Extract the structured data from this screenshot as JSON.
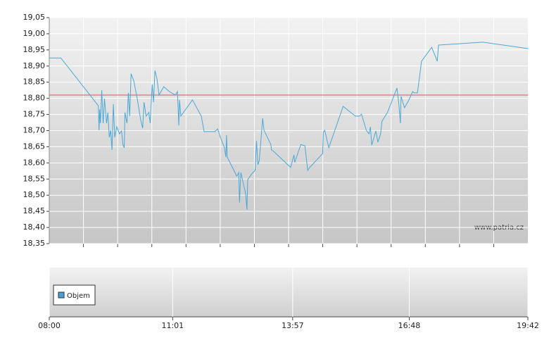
{
  "chart_data": {
    "type": "line",
    "x": [
      "08:00",
      "08:17",
      "09:12",
      "09:13",
      "09:14",
      "09:15",
      "09:17",
      "09:19",
      "09:21",
      "09:24",
      "09:26",
      "09:28",
      "09:30",
      "09:32",
      "09:34",
      "09:36",
      "09:39",
      "09:43",
      "09:46",
      "09:48",
      "09:50",
      "09:51",
      "09:54",
      "09:56",
      "09:58",
      "10:00",
      "10:04",
      "10:09",
      "10:14",
      "10:17",
      "10:19",
      "10:22",
      "10:26",
      "10:28",
      "10:31",
      "10:33",
      "10:35",
      "10:38",
      "10:41",
      "10:48",
      "10:56",
      "11:05",
      "11:08",
      "11:10",
      "11:11",
      "11:13",
      "11:30",
      "11:43",
      "11:47",
      "12:03",
      "12:07",
      "12:11",
      "12:17",
      "12:19",
      "12:20",
      "12:21",
      "12:35",
      "12:38",
      "12:39",
      "12:41",
      "12:48",
      "12:50",
      "12:51",
      "12:57",
      "13:02",
      "13:04",
      "13:06",
      "13:08",
      "13:13",
      "13:15",
      "13:25",
      "13:26",
      "13:29",
      "13:54",
      "13:59",
      "14:00",
      "14:09",
      "14:15",
      "14:19",
      "14:22",
      "14:41",
      "14:42",
      "14:44",
      "14:50",
      "15:11",
      "15:29",
      "15:35",
      "15:38",
      "15:45",
      "15:49",
      "15:51",
      "15:53",
      "15:56",
      "15:59",
      "16:02",
      "16:06",
      "16:08",
      "16:16",
      "16:30",
      "16:33",
      "16:35",
      "16:36",
      "16:41",
      "16:47",
      "16:53",
      "16:55",
      "17:00",
      "17:06",
      "17:21",
      "17:29",
      "17:31",
      "18:36",
      "19:42"
    ],
    "series": [
      {
        "color": "#4aa8d8",
        "values": [
          18.925,
          18.925,
          18.777,
          18.701,
          18.766,
          18.723,
          18.825,
          18.723,
          18.799,
          18.723,
          18.756,
          18.679,
          18.701,
          18.64,
          18.782,
          18.679,
          18.712,
          18.69,
          18.699,
          18.657,
          18.647,
          18.756,
          18.723,
          18.817,
          18.745,
          18.876,
          18.854,
          18.799,
          18.734,
          18.708,
          18.788,
          18.745,
          18.756,
          18.723,
          18.843,
          18.788,
          18.886,
          18.86,
          18.81,
          18.836,
          18.821,
          18.81,
          18.821,
          18.716,
          18.795,
          18.745,
          18.795,
          18.745,
          18.697,
          18.697,
          18.705,
          18.679,
          18.647,
          18.618,
          18.686,
          18.618,
          18.559,
          18.57,
          18.477,
          18.57,
          18.505,
          18.455,
          18.548,
          18.566,
          18.577,
          18.668,
          18.594,
          18.607,
          18.738,
          18.701,
          18.657,
          18.64,
          18.636,
          18.586,
          18.625,
          18.601,
          18.657,
          18.653,
          18.577,
          18.586,
          18.629,
          18.695,
          18.701,
          18.647,
          18.775,
          18.745,
          18.745,
          18.751,
          18.701,
          18.69,
          18.712,
          18.655,
          18.677,
          18.699,
          18.664,
          18.69,
          18.729,
          18.756,
          18.832,
          18.777,
          18.723,
          18.806,
          18.771,
          18.793,
          18.821,
          18.817,
          18.817,
          18.915,
          18.958,
          18.915,
          18.965,
          18.974,
          18.954
        ]
      }
    ],
    "reference_line": {
      "value": 18.81,
      "color": "#e05050"
    },
    "xlim": [
      "08:00",
      "19:42"
    ],
    "xticks": [
      "08:00",
      "11:01",
      "13:57",
      "16:48",
      "19:42"
    ],
    "ylim": [
      18.35,
      19.05
    ],
    "yticks": [
      {
        "value": 18.35,
        "label": "18,35"
      },
      {
        "value": 18.4,
        "label": "18,40"
      },
      {
        "value": 18.45,
        "label": "18,45"
      },
      {
        "value": 18.5,
        "label": "18,50"
      },
      {
        "value": 18.55,
        "label": "18,55"
      },
      {
        "value": 18.6,
        "label": "18,60"
      },
      {
        "value": 18.65,
        "label": "18,65"
      },
      {
        "value": 18.7,
        "label": "18,70"
      },
      {
        "value": 18.75,
        "label": "18,75"
      },
      {
        "value": 18.8,
        "label": "18,80"
      },
      {
        "value": 18.85,
        "label": "18,85"
      },
      {
        "value": 18.9,
        "label": "18,90"
      },
      {
        "value": 18.95,
        "label": "18,95"
      },
      {
        "value": 19.0,
        "label": "19,00"
      },
      {
        "value": 19.05,
        "label": "19,05"
      }
    ],
    "grid": true,
    "watermark": "www.patria.cz",
    "volume_legend": {
      "name": "Objem",
      "color": "#4a9fd5"
    }
  }
}
